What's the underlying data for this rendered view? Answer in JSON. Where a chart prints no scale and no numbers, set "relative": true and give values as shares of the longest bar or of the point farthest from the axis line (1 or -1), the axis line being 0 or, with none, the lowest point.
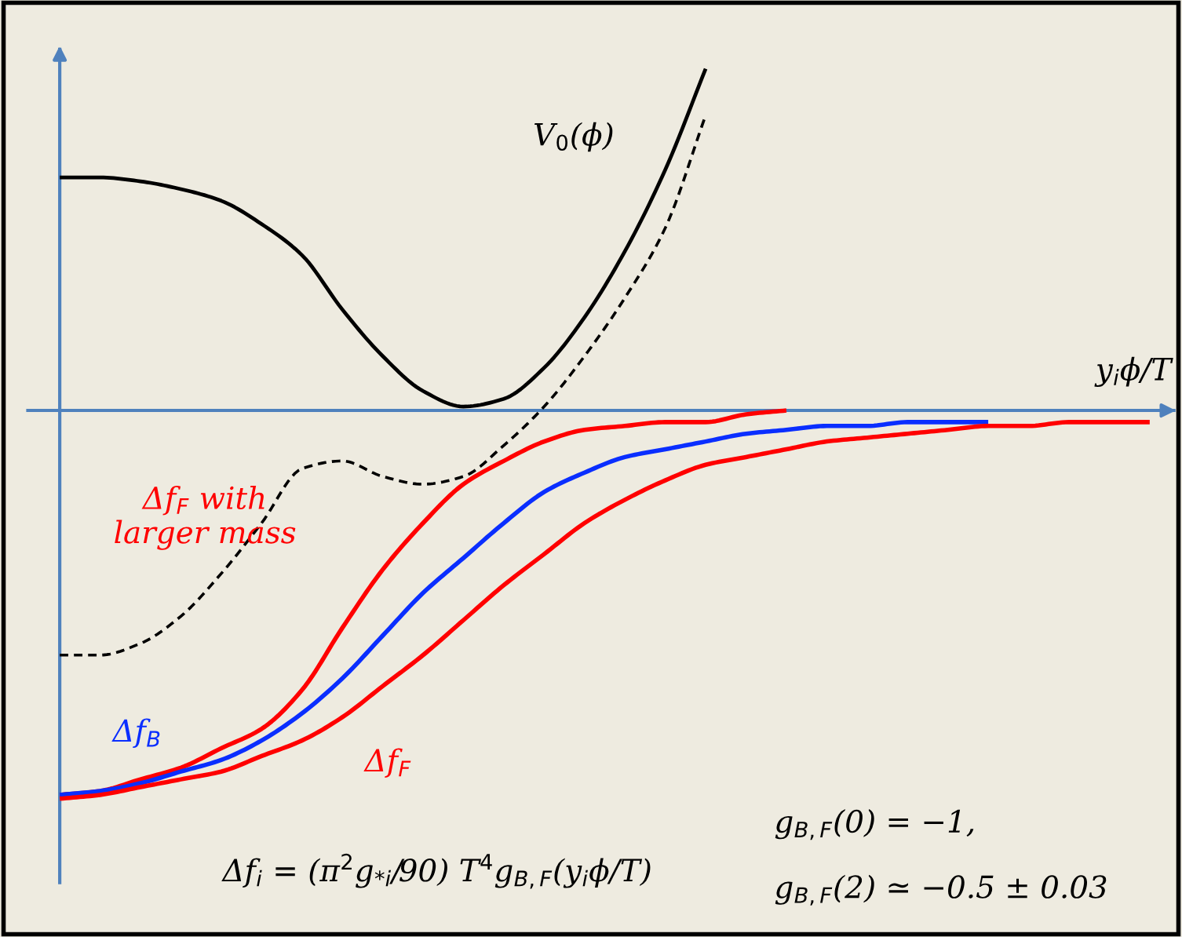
{
  "chart_data": {
    "type": "line",
    "relative": true,
    "xlabel": "y$_{i}$ϕ/T",
    "categories": [
      null,
      null,
      null,
      null,
      null,
      null,
      null,
      null,
      null,
      null,
      null,
      null,
      null,
      null,
      null,
      null,
      null,
      null,
      null,
      null,
      null,
      null,
      null,
      null,
      null,
      null,
      null,
      null
    ],
    "series": [
      {
        "name": "V$_{0}$(ϕ)",
        "color": "#000000",
        "line_style": "solid",
        "values": [
          0.6,
          0.6,
          0.59,
          0.57,
          0.54,
          0.48,
          0.4,
          0.26,
          0.14,
          0.05,
          0.01,
          0.03,
          0.11,
          0.24,
          0.41,
          0.62,
          0.88,
          null,
          null,
          null,
          null,
          null,
          null,
          null,
          null,
          null,
          null,
          null
        ]
      },
      {
        "color": "#000000",
        "line_style": "dashed",
        "values": [
          -0.63,
          -0.63,
          -0.6,
          -0.53,
          -0.42,
          -0.29,
          -0.15,
          -0.13,
          -0.17,
          -0.19,
          -0.17,
          -0.09,
          0.01,
          0.14,
          0.29,
          0.47,
          0.76,
          null,
          null,
          null,
          null,
          null,
          null,
          null,
          null,
          null,
          null,
          null
        ]
      },
      {
        "name": "Δf$_{F}$ with\nlarger mass",
        "color": "#ff0000",
        "line_style": "solid",
        "values": [
          -0.99,
          -0.98,
          -0.95,
          -0.92,
          -0.87,
          -0.82,
          -0.72,
          -0.56,
          -0.41,
          -0.29,
          -0.19,
          -0.13,
          -0.08,
          -0.05,
          -0.04,
          -0.03,
          -0.03,
          -0.01,
          0.0,
          null,
          null,
          null,
          null,
          null,
          null,
          null,
          null,
          null
        ]
      },
      {
        "name": "Δf$_{B}$",
        "color": "#0a2eff",
        "line_style": "solid",
        "values": [
          -0.99,
          -0.98,
          -0.96,
          -0.93,
          -0.9,
          -0.85,
          -0.78,
          -0.69,
          -0.58,
          -0.47,
          -0.38,
          -0.29,
          -0.21,
          -0.16,
          -0.12,
          -0.1,
          -0.08,
          -0.06,
          -0.05,
          -0.04,
          -0.04,
          -0.03,
          -0.03,
          -0.03,
          null,
          null,
          null,
          null
        ]
      },
      {
        "name": "Δf$_{F}$",
        "color": "#ff0000",
        "line_style": "solid",
        "values": [
          -1.0,
          -0.99,
          -0.97,
          -0.95,
          -0.93,
          -0.89,
          -0.85,
          -0.79,
          -0.71,
          -0.63,
          -0.54,
          -0.45,
          -0.37,
          -0.29,
          -0.23,
          -0.18,
          -0.14,
          -0.12,
          -0.1,
          -0.08,
          -0.07,
          -0.06,
          -0.05,
          -0.04,
          -0.04,
          -0.03,
          -0.03,
          -0.03
        ]
      }
    ],
    "ref_lines": [
      {
        "axis": "y",
        "value": 0,
        "color": "#4f81bd"
      }
    ],
    "annotations": [
      "Δf$_{i}$ = (π$^{2}$g$_{*i}$/90) T$^{4}$g$_{B,F}$(y$_{i}$ϕ/T)",
      "g$_{B,F}$(0) = −1,",
      "g$_{B,F}$(2) ≃ −0.5 ± 0.03"
    ]
  }
}
